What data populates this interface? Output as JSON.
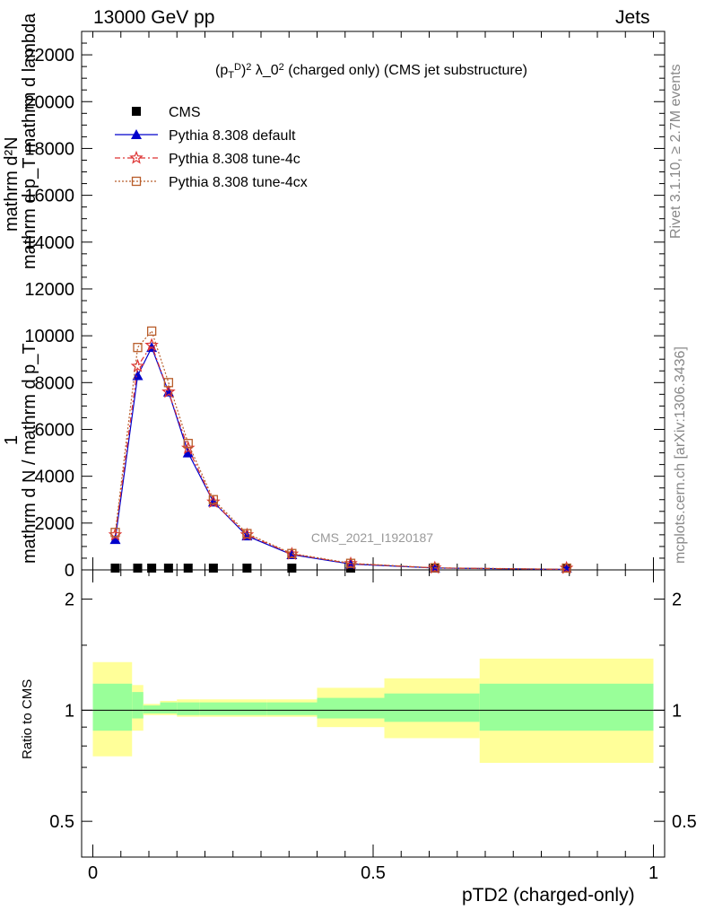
{
  "header": {
    "left": "13000 GeV pp",
    "right": "Jets"
  },
  "sidebar": {
    "rivet": "Rivet 3.1.10, ≥ 2.7M events",
    "mcplots": "mcplots.cern.ch [arXiv:1306.3436]"
  },
  "chart_data": {
    "type": "line",
    "title": "(p_T^D)^2 λ_0^2 (charged only) (CMS jet substructure)",
    "watermark": "CMS_2021_I1920187",
    "xlabel": "pTD2 (charged-only)",
    "ylabel_lines": [
      "mathrm d²N",
      "mathrm d p_T mathrm d lambda",
      "1",
      "mathrm d N / mathrm d p_T"
    ],
    "xlim": [
      -0.02,
      1.02
    ],
    "x_ticks": [
      "0",
      "0.5",
      "1"
    ],
    "main": {
      "ylim": [
        0,
        23000
      ],
      "y_ticks": [
        "0",
        "2000",
        "4000",
        "6000",
        "8000",
        "10000",
        "12000",
        "14000",
        "16000",
        "18000",
        "20000",
        "22000"
      ],
      "x": [
        0.04,
        0.08,
        0.105,
        0.135,
        0.17,
        0.215,
        0.275,
        0.355,
        0.46,
        0.61,
        0.845
      ],
      "series": [
        {
          "name": "CMS",
          "color": "#000000",
          "values": [
            20,
            20,
            20,
            20,
            20,
            20,
            20,
            20,
            20,
            20,
            20
          ]
        },
        {
          "name": "Pythia 8.308 default",
          "color": "#0000cc",
          "values": [
            1300,
            8300,
            9500,
            7600,
            5000,
            2900,
            1450,
            650,
            250,
            80,
            20
          ]
        },
        {
          "name": "Pythia 8.308 tune-4c",
          "color": "#dd3333",
          "values": [
            1500,
            8700,
            9600,
            7600,
            5200,
            2900,
            1500,
            680,
            270,
            85,
            22
          ]
        },
        {
          "name": "Pythia 8.308 tune-4cx",
          "color": "#b85d2a",
          "values": [
            1600,
            9500,
            10200,
            8000,
            5400,
            3000,
            1550,
            700,
            280,
            90,
            25
          ]
        }
      ]
    },
    "ratio": {
      "ylabel": "Ratio to CMS",
      "y_ticks": [
        "0.5",
        "1",
        "2"
      ],
      "y_tick_values": [
        0.5,
        1,
        2
      ],
      "log_scale": true,
      "ylim": [
        0.4,
        2.4
      ],
      "bands": [
        {
          "x0": 0.0,
          "x1": 0.07,
          "inner": [
            0.88,
            1.18
          ],
          "outer": [
            0.75,
            1.35
          ]
        },
        {
          "x0": 0.07,
          "x1": 0.09,
          "inner": [
            0.95,
            1.12
          ],
          "outer": [
            0.88,
            1.17
          ]
        },
        {
          "x0": 0.09,
          "x1": 0.12,
          "inner": [
            0.98,
            1.03
          ],
          "outer": [
            0.97,
            1.04
          ]
        },
        {
          "x0": 0.12,
          "x1": 0.15,
          "inner": [
            0.98,
            1.05
          ],
          "outer": [
            0.97,
            1.06
          ]
        },
        {
          "x0": 0.15,
          "x1": 0.19,
          "inner": [
            0.97,
            1.05
          ],
          "outer": [
            0.96,
            1.07
          ]
        },
        {
          "x0": 0.19,
          "x1": 0.24,
          "inner": [
            0.97,
            1.05
          ],
          "outer": [
            0.96,
            1.07
          ]
        },
        {
          "x0": 0.24,
          "x1": 0.31,
          "inner": [
            0.97,
            1.05
          ],
          "outer": [
            0.96,
            1.07
          ]
        },
        {
          "x0": 0.31,
          "x1": 0.4,
          "inner": [
            0.97,
            1.05
          ],
          "outer": [
            0.96,
            1.07
          ]
        },
        {
          "x0": 0.4,
          "x1": 0.52,
          "inner": [
            0.95,
            1.08
          ],
          "outer": [
            0.9,
            1.15
          ]
        },
        {
          "x0": 0.52,
          "x1": 0.69,
          "inner": [
            0.93,
            1.11
          ],
          "outer": [
            0.84,
            1.22
          ]
        },
        {
          "x0": 0.69,
          "x1": 1.0,
          "inner": [
            0.88,
            1.18
          ],
          "outer": [
            0.72,
            1.38
          ]
        }
      ],
      "inner_color": "#99ff99",
      "outer_color": "#ffff99"
    }
  }
}
